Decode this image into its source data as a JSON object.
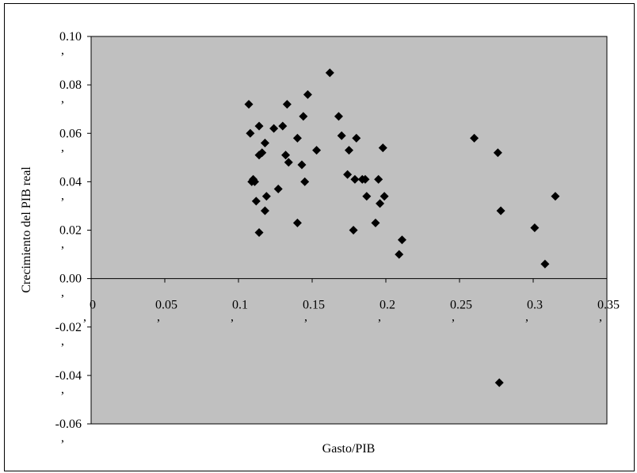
{
  "chart_data": {
    "type": "scatter",
    "title": "",
    "xlabel": "Gasto/PIB",
    "ylabel": "Crecimiento del PIB real",
    "xlim": [
      0,
      0.35
    ],
    "ylim": [
      -0.06,
      0.1
    ],
    "x_ticks": [
      0,
      0.05,
      0.1,
      0.15,
      0.2,
      0.25,
      0.3,
      0.35
    ],
    "x_tick_labels": [
      "0",
      "0.05",
      "0.1",
      "0.15",
      "0.2",
      "0.25",
      "0.3",
      "0.35"
    ],
    "y_ticks": [
      0.1,
      0.08,
      0.06,
      0.04,
      0.02,
      0.0,
      -0.02,
      -0.04,
      -0.06
    ],
    "y_tick_labels": [
      "0.10",
      "0.08",
      "0.06",
      "0.04",
      "0.02",
      "0.00",
      "-0.02",
      "-0.04",
      "-0.06"
    ],
    "tick_suffix": ",",
    "grid": false,
    "legend": "none",
    "plot_background": "#c0c0c0",
    "marker_color": "#000000",
    "marker_shape": "diamond",
    "points": [
      {
        "x": 0.107,
        "y": 0.072
      },
      {
        "x": 0.108,
        "y": 0.06
      },
      {
        "x": 0.109,
        "y": 0.04
      },
      {
        "x": 0.11,
        "y": 0.041
      },
      {
        "x": 0.111,
        "y": 0.04
      },
      {
        "x": 0.112,
        "y": 0.032
      },
      {
        "x": 0.114,
        "y": 0.019
      },
      {
        "x": 0.114,
        "y": 0.063
      },
      {
        "x": 0.114,
        "y": 0.051
      },
      {
        "x": 0.116,
        "y": 0.052
      },
      {
        "x": 0.118,
        "y": 0.056
      },
      {
        "x": 0.118,
        "y": 0.028
      },
      {
        "x": 0.119,
        "y": 0.034
      },
      {
        "x": 0.124,
        "y": 0.062
      },
      {
        "x": 0.127,
        "y": 0.037
      },
      {
        "x": 0.13,
        "y": 0.063
      },
      {
        "x": 0.132,
        "y": 0.051
      },
      {
        "x": 0.133,
        "y": 0.072
      },
      {
        "x": 0.134,
        "y": 0.048
      },
      {
        "x": 0.14,
        "y": 0.058
      },
      {
        "x": 0.14,
        "y": 0.023
      },
      {
        "x": 0.143,
        "y": 0.047
      },
      {
        "x": 0.144,
        "y": 0.067
      },
      {
        "x": 0.145,
        "y": 0.04
      },
      {
        "x": 0.147,
        "y": 0.076
      },
      {
        "x": 0.153,
        "y": 0.053
      },
      {
        "x": 0.162,
        "y": 0.085
      },
      {
        "x": 0.168,
        "y": 0.067
      },
      {
        "x": 0.17,
        "y": 0.059
      },
      {
        "x": 0.174,
        "y": 0.043
      },
      {
        "x": 0.175,
        "y": 0.053
      },
      {
        "x": 0.178,
        "y": 0.02
      },
      {
        "x": 0.179,
        "y": 0.041
      },
      {
        "x": 0.18,
        "y": 0.058
      },
      {
        "x": 0.184,
        "y": 0.041
      },
      {
        "x": 0.186,
        "y": 0.041
      },
      {
        "x": 0.187,
        "y": 0.034
      },
      {
        "x": 0.193,
        "y": 0.023
      },
      {
        "x": 0.195,
        "y": 0.041
      },
      {
        "x": 0.196,
        "y": 0.031
      },
      {
        "x": 0.198,
        "y": 0.054
      },
      {
        "x": 0.199,
        "y": 0.034
      },
      {
        "x": 0.209,
        "y": 0.01
      },
      {
        "x": 0.211,
        "y": 0.016
      },
      {
        "x": 0.26,
        "y": 0.058
      },
      {
        "x": 0.276,
        "y": 0.052
      },
      {
        "x": 0.278,
        "y": 0.028
      },
      {
        "x": 0.277,
        "y": -0.043
      },
      {
        "x": 0.301,
        "y": 0.021
      },
      {
        "x": 0.308,
        "y": 0.006
      },
      {
        "x": 0.315,
        "y": 0.034
      }
    ]
  }
}
